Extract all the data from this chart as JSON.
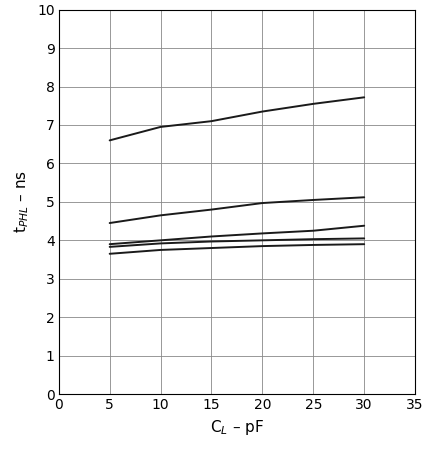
{
  "xlabel": "C$_L$ – pF",
  "ylabel": "t$_{PHL}$ – ns",
  "xlim": [
    0,
    35
  ],
  "ylim": [
    0,
    10
  ],
  "xticks": [
    0,
    5,
    10,
    15,
    20,
    25,
    30,
    35
  ],
  "yticks": [
    0,
    1,
    2,
    3,
    4,
    5,
    6,
    7,
    8,
    9,
    10
  ],
  "lines": [
    {
      "x": [
        5,
        10,
        15,
        20,
        25,
        30
      ],
      "y": [
        6.6,
        6.95,
        7.1,
        7.35,
        7.55,
        7.72
      ]
    },
    {
      "x": [
        5,
        10,
        15,
        20,
        25,
        30
      ],
      "y": [
        4.45,
        4.65,
        4.8,
        4.97,
        5.05,
        5.12
      ]
    },
    {
      "x": [
        5,
        10,
        15,
        20,
        25,
        30
      ],
      "y": [
        3.9,
        4.0,
        4.1,
        4.18,
        4.25,
        4.38
      ]
    },
    {
      "x": [
        5,
        10,
        15,
        20,
        25,
        30
      ],
      "y": [
        3.83,
        3.92,
        3.97,
        4.0,
        4.03,
        4.05
      ]
    },
    {
      "x": [
        5,
        10,
        15,
        20,
        25,
        30
      ],
      "y": [
        3.65,
        3.75,
        3.8,
        3.85,
        3.88,
        3.9
      ]
    }
  ],
  "line_color": "#1a1a1a",
  "line_width": 1.4,
  "grid_color_major": "#888888",
  "grid_color_minor": "#cccccc",
  "bg_color": "#ffffff",
  "figure_bg": "#ffffff",
  "tick_fontsize": 10,
  "label_fontsize": 11
}
